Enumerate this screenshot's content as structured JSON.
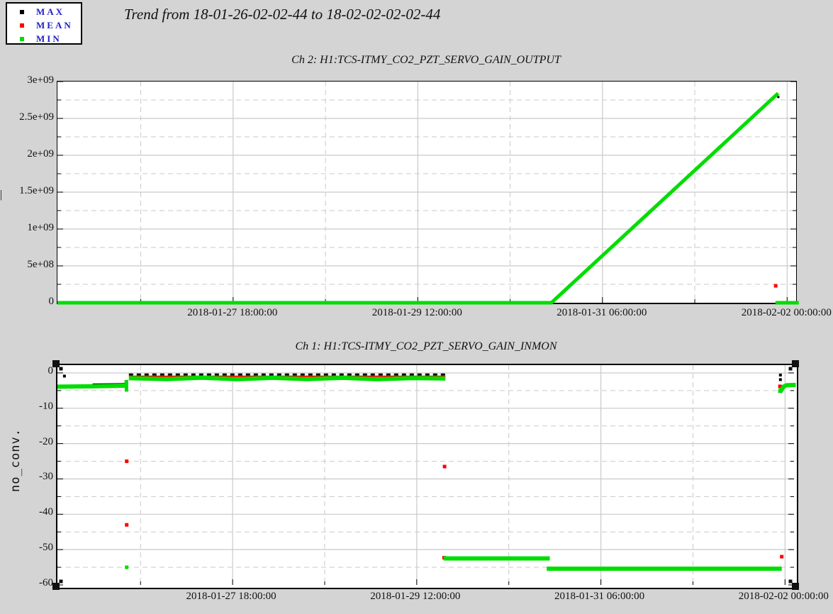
{
  "title": "Trend from 18-01-26-02-02-44 to 18-02-02-02-02-44",
  "colors": {
    "background": "#d4d4d4",
    "plot_background": "#ffffff",
    "grid": "#c9c9c9",
    "frame": "#000000",
    "max": "#000000",
    "mean": "#ff0000",
    "min": "#00dd00",
    "legend_text": "#2020c8"
  },
  "legend": {
    "items": [
      {
        "label": "MAX",
        "color": "#000000"
      },
      {
        "label": "MEAN",
        "color": "#ff0000"
      },
      {
        "label": "MIN",
        "color": "#00dd00"
      }
    ]
  },
  "chart_data": [
    {
      "type": "line",
      "title": "Ch 2: H1:TCS-ITMY_CO2_PZT_SERVO_GAIN_OUTPUT",
      "ylabel_partial": "|",
      "xlim_hours": [
        0,
        168
      ],
      "ylim": [
        0,
        3000000000.0
      ],
      "xticks": [
        {
          "h": 39.954,
          "label": "2018-01-27 18:00:00"
        },
        {
          "h": 81.954,
          "label": "2018-01-29 12:00:00"
        },
        {
          "h": 123.954,
          "label": "2018-01-31 06:00:00"
        },
        {
          "h": 165.954,
          "label": "2018-02-02 00:00:00"
        }
      ],
      "xticks_minor": [
        18.954,
        60.954,
        102.954,
        144.954
      ],
      "yticks": [
        {
          "v": 0,
          "label": "0"
        },
        {
          "v": 500000000.0,
          "label": "5e+08"
        },
        {
          "v": 1000000000.0,
          "label": "1e+09"
        },
        {
          "v": 1500000000.0,
          "label": "1.5e+09"
        },
        {
          "v": 2000000000.0,
          "label": "2e+09"
        },
        {
          "v": 2500000000.0,
          "label": "2.5e+09"
        },
        {
          "v": 3000000000.0,
          "label": "3e+09"
        }
      ],
      "yticks_minor": [
        250000000.0,
        750000000.0,
        1250000000.0,
        1750000000.0,
        2250000000.0,
        2750000000.0
      ],
      "corner_markers": false,
      "series": [
        {
          "name": "MIN",
          "color": "#00dd00",
          "width": 5,
          "segments": [
            [
              [
                0,
                0
              ],
              [
                112.35,
                0
              ],
              [
                163.9,
                2840000000.0
              ]
            ],
            [
              [
                163.3,
                0
              ],
              [
                168.6,
                0
              ]
            ]
          ]
        },
        {
          "name": "MAX",
          "color": "#000000",
          "marker": 3,
          "points": [
            [
              163.95,
              2790000000.0
            ]
          ]
        },
        {
          "name": "MEAN",
          "color": "#ff0000",
          "marker": 5,
          "points": [
            [
              163.35,
              230000000.0
            ]
          ]
        }
      ]
    },
    {
      "type": "line",
      "title": "Ch 1: H1:TCS-ITMY_CO2_PZT_SERVO_GAIN_INMON",
      "ylabel": "no_conv.",
      "xlim_hours": [
        0,
        168
      ],
      "ylim": [
        -60,
        2.2
      ],
      "xticks": [
        {
          "h": 39.954,
          "label": "2018-01-27 18:00:00"
        },
        {
          "h": 81.954,
          "label": "2018-01-29 12:00:00"
        },
        {
          "h": 123.954,
          "label": "2018-01-31 06:00:00"
        },
        {
          "h": 165.954,
          "label": "2018-02-02 00:00:00"
        }
      ],
      "xticks_minor": [
        18.954,
        60.954,
        102.954,
        144.954
      ],
      "yticks": [
        {
          "v": 0,
          "label": "0"
        },
        {
          "v": -10,
          "label": "-10"
        },
        {
          "v": -20,
          "label": "-20"
        },
        {
          "v": -30,
          "label": "-30"
        },
        {
          "v": -40,
          "label": "-40"
        },
        {
          "v": -50,
          "label": "-50"
        },
        {
          "v": -60,
          "label": "-60"
        }
      ],
      "yticks_minor": [
        -5,
        -15,
        -25,
        -35,
        -45,
        -55
      ],
      "corner_markers": true,
      "series": [
        {
          "name": "MAX",
          "color": "#000000",
          "width": 2,
          "segments": [
            [
              [
                8,
                -3.2
              ],
              [
                15.7,
                -3.05
              ]
            ]
          ]
        },
        {
          "name": "MAX",
          "color": "#000000",
          "width": 3,
          "dash": "6,5",
          "segments": [
            [
              [
                16.3,
                -0.45
              ],
              [
                88.5,
                -0.45
              ]
            ]
          ]
        },
        {
          "name": "MAX",
          "color": "#000000",
          "marker": 4,
          "points": [
            [
              1.6,
              -0.9
            ],
            [
              15.65,
              -2.5
            ],
            [
              164.9,
              -0.6
            ],
            [
              164.9,
              -1.9
            ]
          ]
        },
        {
          "name": "MEAN",
          "color": "#ff0000",
          "width": 2,
          "segments": [
            [
              [
                8,
                -3.45
              ],
              [
                15.7,
                -3.3
              ]
            ],
            [
              [
                16.3,
                -0.95
              ],
              [
                88.5,
                -0.95
              ]
            ]
          ]
        },
        {
          "name": "MEAN",
          "color": "#ff0000",
          "marker": 5,
          "points": [
            [
              15.8,
              -25
            ],
            [
              15.8,
              -43
            ],
            [
              88.3,
              -26.5
            ],
            [
              88.2,
              -52.3
            ],
            [
              164.8,
              -3.8
            ],
            [
              165.2,
              -52
            ]
          ]
        },
        {
          "name": "MIN",
          "color": "#00dd00",
          "width": 6,
          "segments": [
            [
              [
                0,
                -3.9
              ],
              [
                8,
                -3.8
              ],
              [
                15.7,
                -3.6
              ]
            ],
            [
              [
                16.3,
                -1.5
              ],
              [
                25,
                -1.75
              ],
              [
                33,
                -1.35
              ],
              [
                41,
                -1.8
              ],
              [
                49,
                -1.4
              ],
              [
                57,
                -1.75
              ],
              [
                65,
                -1.4
              ],
              [
                73,
                -1.8
              ],
              [
                81,
                -1.45
              ],
              [
                88.5,
                -1.6
              ]
            ],
            [
              [
                88.1,
                -52.5
              ],
              [
                112.3,
                -52.5
              ]
            ],
            [
              [
                111.6,
                -55.4
              ],
              [
                165.2,
                -55.4
              ]
            ],
            [
              [
                164.4,
                -5.0
              ],
              [
                165.0,
                -5.1
              ],
              [
                165.6,
                -3.9
              ],
              [
                166.3,
                -3.5
              ],
              [
                168.4,
                -3.4
              ]
            ]
          ]
        },
        {
          "name": "MIN",
          "color": "#00dd00",
          "width": 5,
          "segments": [
            [
              [
                15.75,
                -2.0
              ],
              [
                15.75,
                -5.3
              ]
            ]
          ]
        },
        {
          "name": "MIN",
          "color": "#00dd00",
          "marker": 5,
          "points": [
            [
              15.8,
              -55
            ]
          ]
        }
      ]
    }
  ]
}
